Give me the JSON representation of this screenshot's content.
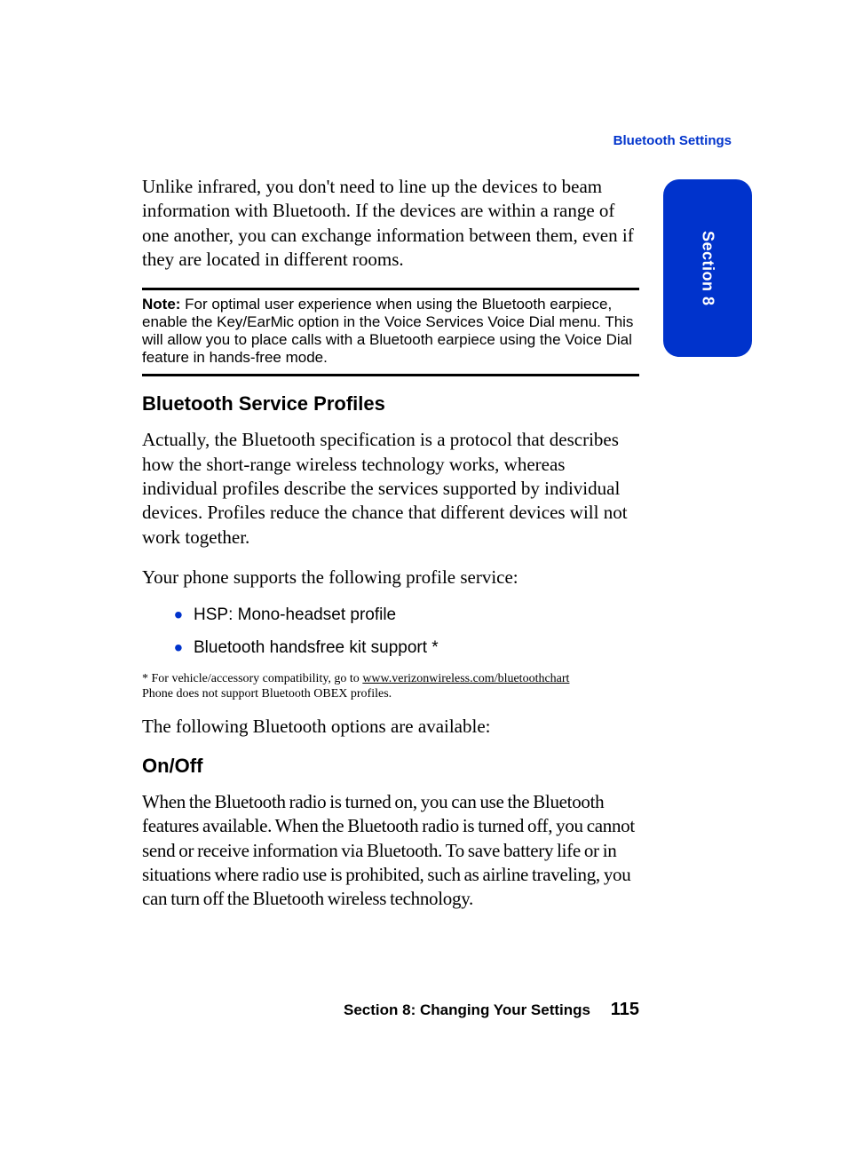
{
  "header": {
    "label": "Bluetooth Settings",
    "color": "#0033cc"
  },
  "sideTab": {
    "label": "Section 8",
    "background": "#0033cc",
    "textColor": "#ffffff"
  },
  "para_intro": "Unlike infrared, you don't need to line up the devices to beam information with Bluetooth. If the devices are within a range of one another, you can exchange information between them, even if they are located in different rooms.",
  "note": {
    "label": "Note:",
    "text": " For optimal user experience when using the Bluetooth earpiece, enable the Key/EarMic option in the Voice Services Voice Dial menu. This will allow you to place calls with a Bluetooth earpiece using the Voice Dial feature in hands-free mode."
  },
  "heading_profiles": "Bluetooth Service Profiles",
  "para_profiles1": "Actually, the Bluetooth specification is a protocol that describes how the short-range wireless technology works, whereas individual profiles describe the services supported by individual devices. Profiles reduce the chance that different devices will not work together.",
  "para_profiles2": "Your phone supports the following profile service:",
  "bullets": [
    "HSP: Mono-headset profile",
    "Bluetooth handsfree kit support *"
  ],
  "footnote": {
    "line1_pre": "* For vehicle/accessory compatibility, go to ",
    "link": "www.verizonwireless.com/bluetoothchart",
    "line2": "Phone does not support Bluetooth OBEX profiles."
  },
  "para_options": "The following Bluetooth options are available:",
  "heading_onoff": "On/Off",
  "para_onoff": "When the Bluetooth radio is turned on, you can use the Bluetooth features available. When the Bluetooth radio is turned off, you cannot send or receive information via Bluetooth. To save battery life or in situations where radio use is prohibited, such as airline traveling, you can turn off the Bluetooth wireless technology.",
  "footer": {
    "section": "Section 8: Changing Your Settings",
    "page": "115"
  },
  "colors": {
    "accent": "#0033cc",
    "text": "#000000",
    "background": "#ffffff"
  }
}
